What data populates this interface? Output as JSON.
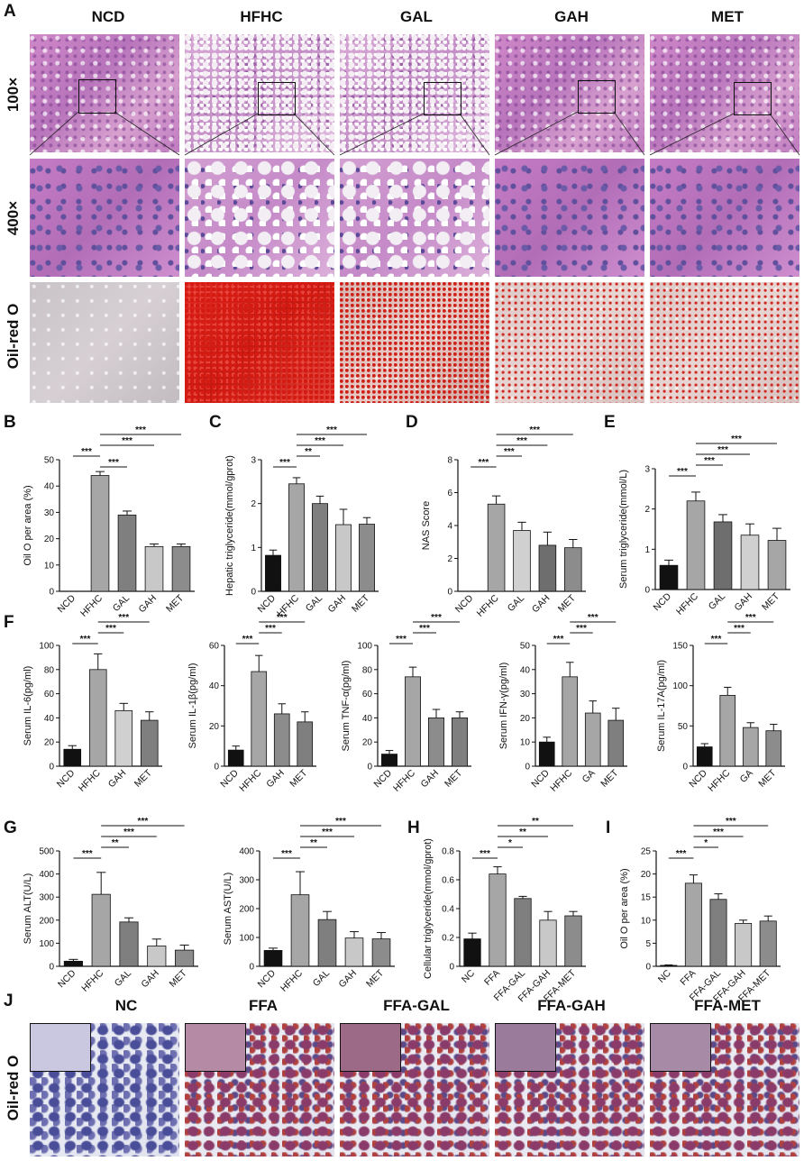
{
  "panel_letters": {
    "A": "A",
    "B": "B",
    "C": "C",
    "D": "D",
    "E": "E",
    "F": "F",
    "G": "G",
    "H": "H",
    "I": "I",
    "J": "J"
  },
  "histology": {
    "columns": [
      "NCD",
      "HFHC",
      "GAL",
      "GAH",
      "MET"
    ],
    "rows": [
      "100×",
      "400×",
      "Oil-red O"
    ]
  },
  "cells_panel": {
    "columns": [
      "NC",
      "FFA",
      "FFA-GAL",
      "FFA-GAH",
      "FFA-MET"
    ],
    "row": "Oil-red O"
  },
  "chart_data": [
    {
      "id": "B",
      "type": "bar",
      "ylabel": "Oil O per area (%)",
      "categories": [
        "NCD",
        "HFHC",
        "GAL",
        "GAH",
        "MET"
      ],
      "values": [
        0,
        44,
        29,
        17,
        17
      ],
      "errors": [
        0,
        1.5,
        1.5,
        1,
        1
      ],
      "ylim": [
        0,
        50
      ],
      "yticks": [
        0,
        10,
        20,
        30,
        40,
        50
      ],
      "colors": [
        "#111111",
        "#a6a6a6",
        "#7f7f7f",
        "#c8c8c8",
        "#8c8c8c"
      ],
      "sig": [
        {
          "from": 1,
          "to": 2,
          "label": "***"
        },
        {
          "from": 1,
          "to": 3,
          "label": "***"
        },
        {
          "from": 0,
          "to": 1,
          "label": "***"
        },
        {
          "from": 1,
          "to": 4,
          "label": "***"
        }
      ]
    },
    {
      "id": "C",
      "type": "bar",
      "ylabel": "Hepatic triglyceride(mmol/gprot)",
      "categories": [
        "NCD",
        "HFHC",
        "GAL",
        "GAH",
        "MET"
      ],
      "values": [
        0.82,
        2.45,
        2.0,
        1.52,
        1.53
      ],
      "errors": [
        0.12,
        0.14,
        0.17,
        0.35,
        0.15
      ],
      "ylim": [
        0,
        3
      ],
      "yticks": [
        0,
        1,
        2,
        3
      ],
      "colors": [
        "#111111",
        "#a6a6a6",
        "#7f7f7f",
        "#c8c8c8",
        "#8c8c8c"
      ],
      "sig": [
        {
          "from": 0,
          "to": 1,
          "label": "***"
        },
        {
          "from": 1,
          "to": 2,
          "label": "**"
        },
        {
          "from": 1,
          "to": 3,
          "label": "***"
        },
        {
          "from": 1,
          "to": 4,
          "label": "***"
        }
      ]
    },
    {
      "id": "D",
      "type": "bar",
      "ylabel": "NAS Score",
      "categories": [
        "NCD",
        "HFHC",
        "GAL",
        "GAH",
        "MET"
      ],
      "values": [
        0,
        5.3,
        3.7,
        2.8,
        2.65
      ],
      "errors": [
        0,
        0.5,
        0.5,
        0.8,
        0.5
      ],
      "ylim": [
        0,
        8
      ],
      "yticks": [
        0,
        2,
        4,
        6,
        8
      ],
      "colors": [
        "#111111",
        "#a6a6a6",
        "#d0d0d0",
        "#6e6e6e",
        "#8c8c8c"
      ],
      "sig": [
        {
          "from": 0,
          "to": 1,
          "label": "***"
        },
        {
          "from": 1,
          "to": 2,
          "label": "***"
        },
        {
          "from": 1,
          "to": 3,
          "label": "***"
        },
        {
          "from": 1,
          "to": 4,
          "label": "***"
        }
      ]
    },
    {
      "id": "E",
      "type": "bar",
      "ylabel": "Serum triglyceride(mmol/L)",
      "categories": [
        "NCD",
        "HFHC",
        "GAL",
        "GAH",
        "MET"
      ],
      "values": [
        0.6,
        2.2,
        1.68,
        1.35,
        1.22
      ],
      "errors": [
        0.13,
        0.22,
        0.18,
        0.28,
        0.3
      ],
      "ylim": [
        0,
        3
      ],
      "yticks": [
        0,
        1,
        2,
        3
      ],
      "colors": [
        "#111111",
        "#a6a6a6",
        "#6e6e6e",
        "#d0d0d0",
        "#a6a6a6"
      ],
      "sig": [
        {
          "from": 0,
          "to": 1,
          "label": "***"
        },
        {
          "from": 1,
          "to": 2,
          "label": "***"
        },
        {
          "from": 1,
          "to": 3,
          "label": "***"
        },
        {
          "from": 1,
          "to": 4,
          "label": "***"
        }
      ]
    },
    {
      "id": "F1",
      "type": "bar",
      "ylabel": "Serum IL-6(pg/ml)",
      "categories": [
        "NCD",
        "HFHC",
        "GAH",
        "MET"
      ],
      "values": [
        14,
        80,
        46,
        38
      ],
      "errors": [
        3,
        13,
        6,
        7
      ],
      "ylim": [
        0,
        100
      ],
      "yticks": [
        0,
        20,
        40,
        60,
        80,
        100
      ],
      "colors": [
        "#111111",
        "#a6a6a6",
        "#d0d0d0",
        "#7f7f7f"
      ],
      "sig": [
        {
          "from": 0,
          "to": 1,
          "label": "***"
        },
        {
          "from": 1,
          "to": 2,
          "label": "***"
        },
        {
          "from": 1,
          "to": 3,
          "label": "***"
        }
      ]
    },
    {
      "id": "F2",
      "type": "bar",
      "ylabel": "Serum IL-1β(pg/ml)",
      "categories": [
        "NCD",
        "HFHC",
        "GAH",
        "MET"
      ],
      "values": [
        8,
        47,
        26,
        22
      ],
      "errors": [
        2,
        8,
        5,
        5
      ],
      "ylim": [
        0,
        60
      ],
      "yticks": [
        0,
        20,
        40,
        60
      ],
      "colors": [
        "#111111",
        "#a6a6a6",
        "#8c8c8c",
        "#7f7f7f"
      ],
      "sig": [
        {
          "from": 0,
          "to": 1,
          "label": "***"
        },
        {
          "from": 1,
          "to": 2,
          "label": "***"
        },
        {
          "from": 1,
          "to": 3,
          "label": "***"
        }
      ]
    },
    {
      "id": "F3",
      "type": "bar",
      "ylabel": "Serum TNF-α(pg/ml)",
      "categories": [
        "NCD",
        "HFHC",
        "GAH",
        "MET"
      ],
      "values": [
        10,
        74,
        40,
        40
      ],
      "errors": [
        3,
        8,
        7,
        5
      ],
      "ylim": [
        0,
        100
      ],
      "yticks": [
        0,
        20,
        40,
        60,
        80,
        100
      ],
      "colors": [
        "#111111",
        "#a6a6a6",
        "#8c8c8c",
        "#7f7f7f"
      ],
      "sig": [
        {
          "from": 0,
          "to": 1,
          "label": "***"
        },
        {
          "from": 1,
          "to": 2,
          "label": "***"
        },
        {
          "from": 1,
          "to": 3,
          "label": "***"
        }
      ]
    },
    {
      "id": "F4",
      "type": "bar",
      "ylabel": "Serum IFN-γ(pg/ml)",
      "categories": [
        "NCD",
        "HFHC",
        "GA",
        "MET"
      ],
      "values": [
        10,
        37,
        22,
        19
      ],
      "errors": [
        2,
        6,
        5,
        5
      ],
      "ylim": [
        0,
        50
      ],
      "yticks": [
        0,
        10,
        20,
        30,
        40,
        50
      ],
      "colors": [
        "#111111",
        "#a6a6a6",
        "#a6a6a6",
        "#7f7f7f"
      ],
      "sig": [
        {
          "from": 0,
          "to": 1,
          "label": "***"
        },
        {
          "from": 1,
          "to": 2,
          "label": "***"
        },
        {
          "from": 1,
          "to": 3,
          "label": "***"
        }
      ]
    },
    {
      "id": "F5",
      "type": "bar",
      "ylabel": "Serum IL-17A(pg/ml)",
      "categories": [
        "NCD",
        "HFHC",
        "GA",
        "MET"
      ],
      "values": [
        24,
        88,
        48,
        44
      ],
      "errors": [
        4,
        10,
        6,
        8
      ],
      "ylim": [
        0,
        150
      ],
      "yticks": [
        0,
        50,
        100,
        150
      ],
      "colors": [
        "#111111",
        "#a6a6a6",
        "#a6a6a6",
        "#8c8c8c"
      ],
      "sig": [
        {
          "from": 0,
          "to": 1,
          "label": "***"
        },
        {
          "from": 1,
          "to": 2,
          "label": "***"
        },
        {
          "from": 1,
          "to": 3,
          "label": "***"
        }
      ]
    },
    {
      "id": "G1",
      "type": "bar",
      "ylabel": "Serum ALT(U/L)",
      "categories": [
        "NCD",
        "HFHC",
        "GAL",
        "GAH",
        "MET"
      ],
      "values": [
        22,
        312,
        192,
        88,
        70
      ],
      "errors": [
        8,
        95,
        18,
        30,
        22
      ],
      "ylim": [
        0,
        500
      ],
      "yticks": [
        0,
        100,
        200,
        300,
        400,
        500
      ],
      "colors": [
        "#111111",
        "#a6a6a6",
        "#7f7f7f",
        "#c8c8c8",
        "#8c8c8c"
      ],
      "sig": [
        {
          "from": 0,
          "to": 1,
          "label": "***"
        },
        {
          "from": 1,
          "to": 2,
          "label": "**"
        },
        {
          "from": 1,
          "to": 3,
          "label": "***"
        },
        {
          "from": 1,
          "to": 4,
          "label": "***"
        }
      ]
    },
    {
      "id": "G2",
      "type": "bar",
      "ylabel": "Serum AST(U/L)",
      "categories": [
        "NCD",
        "HFHC",
        "GAL",
        "GAH",
        "MET"
      ],
      "values": [
        55,
        248,
        162,
        98,
        95
      ],
      "errors": [
        8,
        80,
        28,
        22,
        22
      ],
      "ylim": [
        0,
        400
      ],
      "yticks": [
        0,
        100,
        200,
        300,
        400
      ],
      "colors": [
        "#111111",
        "#a6a6a6",
        "#7f7f7f",
        "#c8c8c8",
        "#8c8c8c"
      ],
      "sig": [
        {
          "from": 0,
          "to": 1,
          "label": "***"
        },
        {
          "from": 1,
          "to": 2,
          "label": "**"
        },
        {
          "from": 1,
          "to": 3,
          "label": "***"
        },
        {
          "from": 1,
          "to": 4,
          "label": "***"
        }
      ]
    },
    {
      "id": "H",
      "type": "bar",
      "ylabel": "Cellular triglyceride(mmol/gprot)",
      "categories": [
        "NC",
        "FFA",
        "FFA-GAL",
        "FFA-GAH",
        "FFA-MET"
      ],
      "values": [
        0.19,
        0.64,
        0.47,
        0.32,
        0.35
      ],
      "errors": [
        0.04,
        0.05,
        0.015,
        0.06,
        0.03
      ],
      "ylim": [
        0,
        0.8
      ],
      "yticks": [
        0.0,
        0.2,
        0.4,
        0.6,
        0.8
      ],
      "colors": [
        "#111111",
        "#a6a6a6",
        "#7f7f7f",
        "#c8c8c8",
        "#8c8c8c"
      ],
      "sig": [
        {
          "from": 0,
          "to": 1,
          "label": "***"
        },
        {
          "from": 1,
          "to": 2,
          "label": "*"
        },
        {
          "from": 1,
          "to": 3,
          "label": "**"
        },
        {
          "from": 1,
          "to": 4,
          "label": "**"
        }
      ]
    },
    {
      "id": "I",
      "type": "bar",
      "ylabel": "Oil O per area (%)",
      "categories": [
        "NC",
        "FFA",
        "FFA-GAL",
        "FFA-GAH",
        "FFA-MET"
      ],
      "values": [
        0.2,
        18,
        14.5,
        9.3,
        9.8
      ],
      "errors": [
        0.1,
        1.8,
        1.2,
        0.7,
        1.1
      ],
      "ylim": [
        0,
        25
      ],
      "yticks": [
        0,
        5,
        10,
        15,
        20,
        25
      ],
      "colors": [
        "#111111",
        "#a6a6a6",
        "#7f7f7f",
        "#c8c8c8",
        "#8c8c8c"
      ],
      "sig": [
        {
          "from": 0,
          "to": 1,
          "label": "***"
        },
        {
          "from": 1,
          "to": 2,
          "label": "*"
        },
        {
          "from": 1,
          "to": 3,
          "label": "***"
        },
        {
          "from": 1,
          "to": 4,
          "label": "***"
        }
      ]
    }
  ]
}
